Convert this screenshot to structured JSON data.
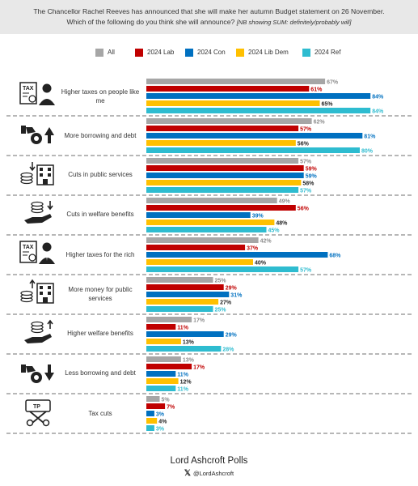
{
  "header": {
    "question_line1": "The Chancellor Rachel Reeves has announced that she will make her autumn Budget statement on 26 November.",
    "question_line2": "Which of the following do you think she will announce?",
    "question_note": "[NB showing SUM: definitely/probably will]"
  },
  "legend": {
    "items": [
      {
        "label": "All",
        "color": "#a6a6a6"
      },
      {
        "label": "2024 Lab",
        "color": "#c00000"
      },
      {
        "label": "2024 Con",
        "color": "#0070c0"
      },
      {
        "label": "2024 Lib Dem",
        "color": "#ffc000"
      },
      {
        "label": "2024 Ref",
        "color": "#2ebcd0"
      }
    ]
  },
  "chart_data": {
    "type": "bar",
    "orientation": "horizontal",
    "xlim": [
      0,
      100
    ],
    "grid": false,
    "legend_position": "top",
    "categories": [
      "Higher taxes on people like me",
      "More borrowing and debt",
      "Cuts in public services",
      "Cuts in welfare benefits",
      "Higher taxes for the rich",
      "More money for public services",
      "Higher welfare benefits",
      "Less borrowing and debt",
      "Tax cuts"
    ],
    "series": [
      {
        "name": "All",
        "color": "#a6a6a6",
        "values": [
          67,
          62,
          57,
          49,
          42,
          25,
          17,
          13,
          5
        ]
      },
      {
        "name": "2024 Lab",
        "color": "#c00000",
        "values": [
          61,
          57,
          59,
          56,
          37,
          29,
          11,
          17,
          7
        ]
      },
      {
        "name": "2024 Con",
        "color": "#0070c0",
        "values": [
          84,
          81,
          59,
          39,
          68,
          31,
          29,
          11,
          3
        ]
      },
      {
        "name": "2024 Lib Dem",
        "color": "#ffc000",
        "values": [
          65,
          56,
          58,
          48,
          40,
          27,
          13,
          12,
          4
        ]
      },
      {
        "name": "2024 Ref",
        "color": "#2ebcd0",
        "values": [
          84,
          80,
          57,
          45,
          57,
          25,
          28,
          11,
          3
        ]
      }
    ],
    "value_suffix": "%"
  },
  "category_labels": [
    [
      "Higher taxes on people like",
      "me"
    ],
    [
      "More borrowing and debt"
    ],
    [
      "Cuts in public services"
    ],
    [
      "Cuts in welfare benefits"
    ],
    [
      "Higher taxes for the rich"
    ],
    [
      "More money for public",
      "services"
    ],
    [
      "Higher welfare benefits"
    ],
    [
      "Less borrowing and debt"
    ],
    [
      "Tax cuts"
    ]
  ],
  "icons": [
    {
      "name": "tax-person-icon",
      "text": "TAX"
    },
    {
      "name": "borrowing-up-icon"
    },
    {
      "name": "cuts-public-services-icon"
    },
    {
      "name": "cuts-welfare-icon"
    },
    {
      "name": "tax-rich-icon",
      "text": "TAX"
    },
    {
      "name": "money-public-services-icon"
    },
    {
      "name": "welfare-up-icon"
    },
    {
      "name": "borrowing-down-icon"
    },
    {
      "name": "tax-cut-scissors-icon",
      "text": "TP"
    }
  ],
  "footer": {
    "brand": "Lord Ashcroft Polls",
    "handle": "@LordAshcroft",
    "x_glyph": "𝕏"
  }
}
